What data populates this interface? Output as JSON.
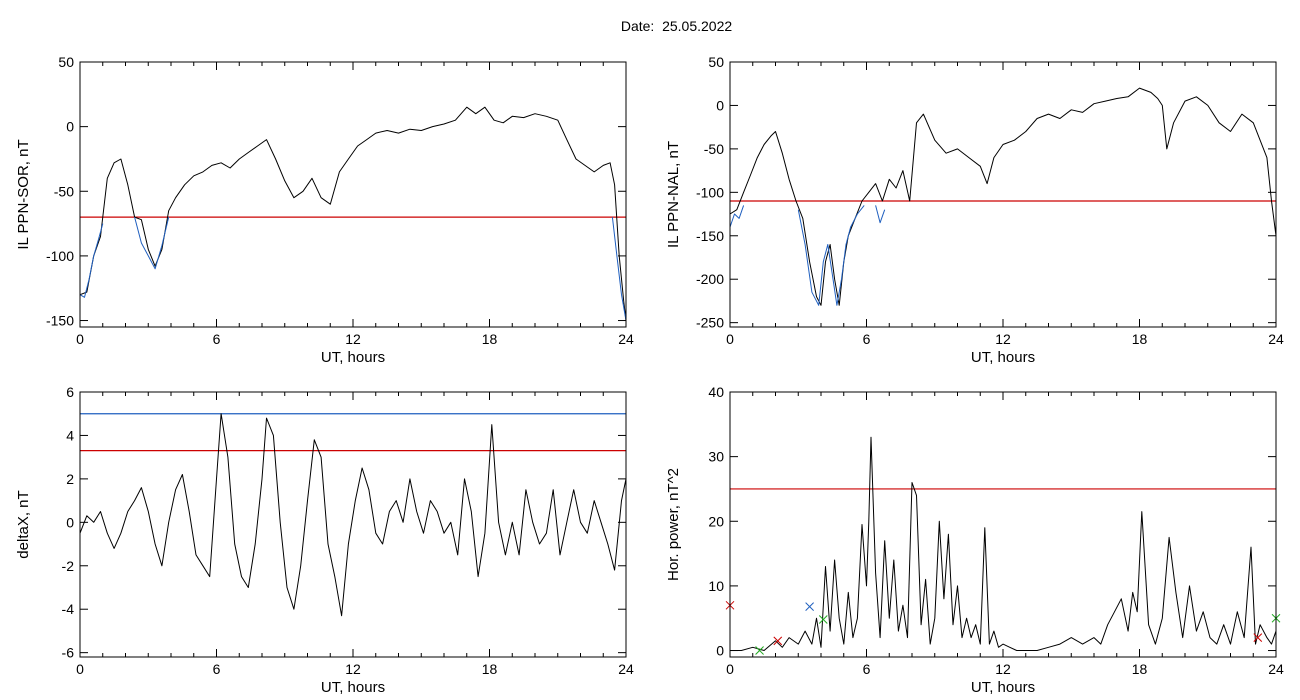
{
  "header": {
    "date_label": "Date:  25.05.2022"
  },
  "chart_data": [
    {
      "type": "line",
      "ylabel": "IL PPN-SOR, nT",
      "xlabel": "UT, hours",
      "xlim": [
        0,
        24
      ],
      "ylim": [
        -155,
        50
      ],
      "xticks": [
        0,
        6,
        12,
        18,
        24
      ],
      "yticks": [
        -150,
        -100,
        -50,
        0,
        50
      ],
      "series": [
        {
          "color": "#000000",
          "x": [
            0,
            0.3,
            0.6,
            0.9,
            1.2,
            1.5,
            1.8,
            2.1,
            2.4,
            2.7,
            3.0,
            3.3,
            3.6,
            3.9,
            4.2,
            4.6,
            5.0,
            5.4,
            5.8,
            6.2,
            6.6,
            7.0,
            7.4,
            7.8,
            8.2,
            8.6,
            9.0,
            9.4,
            9.8,
            10.2,
            10.6,
            11.0,
            11.4,
            11.8,
            12.2,
            12.6,
            13.0,
            13.5,
            14.0,
            14.5,
            15.0,
            15.5,
            16.0,
            16.5,
            17.0,
            17.4,
            17.8,
            18.2,
            18.6,
            19.0,
            19.5,
            20.0,
            20.5,
            21.0,
            21.4,
            21.8,
            22.2,
            22.6,
            23.0,
            23.3,
            23.5,
            23.7,
            23.9,
            24.0
          ],
          "y": [
            -130,
            -128,
            -100,
            -85,
            -40,
            -28,
            -25,
            -45,
            -70,
            -72,
            -95,
            -108,
            -95,
            -65,
            -55,
            -45,
            -38,
            -35,
            -30,
            -28,
            -32,
            -25,
            -20,
            -15,
            -10,
            -25,
            -42,
            -55,
            -50,
            -40,
            -55,
            -60,
            -35,
            -25,
            -15,
            -10,
            -5,
            -3,
            -5,
            -2,
            -3,
            0,
            2,
            5,
            15,
            10,
            15,
            5,
            3,
            8,
            7,
            10,
            8,
            5,
            -10,
            -25,
            -30,
            -35,
            -30,
            -28,
            -45,
            -100,
            -135,
            -150
          ]
        },
        {
          "color": "#1f5fbf",
          "x": [
            0,
            0.2,
            0.4,
            0.6,
            0.8,
            1.0
          ],
          "y": [
            -130,
            -132,
            -118,
            -100,
            -88,
            -75
          ]
        },
        {
          "color": "#1f5fbf",
          "x": [
            2.4,
            2.7,
            3.0,
            3.3,
            3.6,
            3.9
          ],
          "y": [
            -70,
            -90,
            -100,
            -110,
            -92,
            -70
          ]
        },
        {
          "color": "#1f5fbf",
          "x": [
            23.4,
            23.6,
            23.8,
            24.0
          ],
          "y": [
            -70,
            -100,
            -130,
            -150
          ]
        }
      ],
      "hlines": [
        {
          "y": -70,
          "color": "#cc0000"
        }
      ]
    },
    {
      "type": "line",
      "ylabel": "IL PPN-NAL, nT",
      "xlabel": "UT, hours",
      "xlim": [
        0,
        24
      ],
      "ylim": [
        -255,
        50
      ],
      "xticks": [
        0,
        6,
        12,
        18,
        24
      ],
      "yticks": [
        -250,
        -200,
        -150,
        -100,
        -50,
        0,
        50
      ],
      "series": [
        {
          "color": "#000000",
          "x": [
            0,
            0.3,
            0.6,
            0.9,
            1.2,
            1.5,
            1.8,
            2.0,
            2.3,
            2.6,
            2.9,
            3.2,
            3.5,
            3.8,
            4.0,
            4.2,
            4.4,
            4.6,
            4.8,
            5.0,
            5.2,
            5.5,
            5.8,
            6.1,
            6.4,
            6.7,
            7.0,
            7.3,
            7.6,
            7.9,
            8.2,
            8.5,
            9.0,
            9.5,
            10.0,
            10.5,
            11.0,
            11.3,
            11.6,
            12.0,
            12.5,
            13.0,
            13.5,
            14.0,
            14.5,
            15.0,
            15.5,
            16.0,
            16.5,
            17.0,
            17.5,
            18.0,
            18.5,
            18.8,
            19.0,
            19.2,
            19.5,
            20.0,
            20.5,
            21.0,
            21.5,
            22.0,
            22.5,
            23.0,
            23.3,
            23.6,
            23.8,
            24.0
          ],
          "y": [
            -125,
            -120,
            -100,
            -80,
            -60,
            -45,
            -35,
            -30,
            -55,
            -85,
            -110,
            -130,
            -180,
            -220,
            -230,
            -180,
            -160,
            -200,
            -230,
            -180,
            -150,
            -130,
            -110,
            -100,
            -90,
            -110,
            -85,
            -95,
            -75,
            -110,
            -20,
            -10,
            -40,
            -55,
            -50,
            -60,
            -70,
            -90,
            -60,
            -45,
            -40,
            -30,
            -15,
            -10,
            -15,
            -5,
            -8,
            2,
            5,
            8,
            10,
            20,
            15,
            8,
            0,
            -50,
            -20,
            5,
            10,
            0,
            -20,
            -30,
            -10,
            -20,
            -40,
            -60,
            -110,
            -150
          ]
        },
        {
          "color": "#1f5fbf",
          "x": [
            0,
            0.2,
            0.4,
            0.6
          ],
          "y": [
            -140,
            -125,
            -130,
            -115
          ]
        },
        {
          "color": "#1f5fbf",
          "x": [
            3.0,
            3.3,
            3.6,
            3.9,
            4.1,
            4.3,
            4.5,
            4.7,
            4.9,
            5.1,
            5.3,
            5.6,
            5.9
          ],
          "y": [
            -120,
            -160,
            -215,
            -230,
            -180,
            -160,
            -195,
            -230,
            -200,
            -160,
            -140,
            -125,
            -115
          ]
        },
        {
          "color": "#1f5fbf",
          "x": [
            6.4,
            6.6,
            6.8
          ],
          "y": [
            -115,
            -135,
            -120
          ]
        }
      ],
      "hlines": [
        {
          "y": -110,
          "color": "#cc0000"
        }
      ]
    },
    {
      "type": "line",
      "ylabel": "deltaX, nT",
      "xlabel": "UT, hours",
      "xlim": [
        0,
        24
      ],
      "ylim": [
        -6.2,
        6
      ],
      "xticks": [
        0,
        6,
        12,
        18,
        24
      ],
      "yticks": [
        -6,
        -4,
        -2,
        0,
        2,
        4,
        6
      ],
      "series": [
        {
          "color": "#000000",
          "x": [
            0,
            0.3,
            0.6,
            0.9,
            1.2,
            1.5,
            1.8,
            2.1,
            2.4,
            2.7,
            3.0,
            3.3,
            3.6,
            3.9,
            4.2,
            4.5,
            4.8,
            5.1,
            5.4,
            5.7,
            6.0,
            6.2,
            6.5,
            6.8,
            7.1,
            7.4,
            7.7,
            8.0,
            8.2,
            8.5,
            8.8,
            9.1,
            9.4,
            9.7,
            10.0,
            10.3,
            10.6,
            10.9,
            11.2,
            11.5,
            11.8,
            12.1,
            12.4,
            12.7,
            13.0,
            13.3,
            13.6,
            13.9,
            14.2,
            14.5,
            14.8,
            15.1,
            15.4,
            15.7,
            16.0,
            16.3,
            16.6,
            16.9,
            17.2,
            17.5,
            17.8,
            18.1,
            18.4,
            18.7,
            19.0,
            19.3,
            19.6,
            19.9,
            20.2,
            20.5,
            20.8,
            21.1,
            21.4,
            21.7,
            22.0,
            22.3,
            22.6,
            22.9,
            23.2,
            23.5,
            23.8,
            24.0
          ],
          "y": [
            -0.5,
            0.3,
            0,
            0.5,
            -0.5,
            -1.2,
            -0.5,
            0.5,
            1.0,
            1.6,
            0.5,
            -1.0,
            -2.0,
            0.0,
            1.5,
            2.2,
            0.5,
            -1.5,
            -2.0,
            -2.5,
            2.0,
            5.0,
            3.0,
            -1.0,
            -2.5,
            -3.0,
            -1.0,
            2.0,
            4.8,
            4.0,
            0.0,
            -3.0,
            -4.0,
            -2.0,
            1.0,
            3.8,
            3.0,
            -1.0,
            -2.5,
            -4.3,
            -1.0,
            1.0,
            2.5,
            1.5,
            -0.5,
            -1.0,
            0.5,
            1.0,
            0.0,
            2.0,
            0.5,
            -0.5,
            1.0,
            0.5,
            -0.5,
            0.0,
            -1.5,
            2.0,
            0.5,
            -2.5,
            -0.5,
            4.5,
            0.0,
            -1.5,
            0.0,
            -1.5,
            1.5,
            0.0,
            -1.0,
            -0.5,
            1.5,
            -1.5,
            0.0,
            1.5,
            0.0,
            -0.5,
            1.0,
            0.0,
            -1.0,
            -2.2,
            1.0,
            2.0
          ]
        }
      ],
      "hlines": [
        {
          "y": 5.0,
          "color": "#1f5fbf"
        },
        {
          "y": 3.3,
          "color": "#cc0000"
        }
      ]
    },
    {
      "type": "line",
      "ylabel": "Hor. power, nT^2",
      "xlabel": "UT, hours",
      "xlim": [
        0,
        24
      ],
      "ylim": [
        -1,
        40
      ],
      "xticks": [
        0,
        6,
        12,
        18,
        24
      ],
      "yticks": [
        0,
        10,
        20,
        30,
        40
      ],
      "series": [
        {
          "color": "#000000",
          "x": [
            0,
            0.5,
            1.0,
            1.5,
            2.0,
            2.3,
            2.6,
            3.0,
            3.3,
            3.6,
            3.8,
            4.0,
            4.2,
            4.4,
            4.6,
            4.8,
            5.0,
            5.2,
            5.4,
            5.6,
            5.8,
            6.0,
            6.1,
            6.2,
            6.4,
            6.6,
            6.8,
            7.0,
            7.2,
            7.4,
            7.6,
            7.8,
            8.0,
            8.2,
            8.4,
            8.6,
            8.8,
            9.0,
            9.2,
            9.4,
            9.6,
            9.8,
            10.0,
            10.2,
            10.4,
            10.6,
            10.8,
            11.0,
            11.2,
            11.4,
            11.6,
            11.8,
            12.0,
            12.3,
            12.6,
            13.0,
            13.5,
            14.0,
            14.5,
            15.0,
            15.5,
            16.0,
            16.3,
            16.6,
            16.9,
            17.2,
            17.5,
            17.7,
            17.9,
            18.1,
            18.4,
            18.7,
            19.0,
            19.3,
            19.6,
            19.9,
            20.2,
            20.5,
            20.8,
            21.1,
            21.4,
            21.7,
            22.0,
            22.3,
            22.6,
            22.9,
            23.1,
            23.3,
            23.6,
            23.8,
            24.0
          ],
          "y": [
            0,
            0,
            0.5,
            0,
            1.5,
            0.5,
            2.0,
            1.0,
            3.0,
            1.0,
            5.0,
            0.5,
            13.0,
            3.0,
            14.0,
            5.0,
            1.0,
            9.0,
            2.0,
            5.0,
            19.5,
            10.0,
            20.0,
            33.0,
            12.0,
            2.0,
            17.0,
            5.0,
            14.0,
            3.0,
            7.0,
            2.0,
            26.0,
            24.0,
            4.0,
            11.0,
            1.0,
            5.0,
            20.0,
            8.0,
            18.0,
            4.0,
            10.0,
            2.0,
            5.0,
            2.0,
            4.0,
            1.0,
            19.0,
            1.0,
            3.0,
            0.5,
            1.0,
            0.5,
            0,
            0,
            0,
            0.5,
            1.0,
            2.0,
            1.0,
            2.0,
            1.0,
            4.0,
            6.0,
            8.0,
            3.0,
            9.0,
            6.0,
            21.5,
            4.0,
            1.0,
            5.0,
            17.5,
            9.0,
            2.0,
            10.0,
            3.0,
            6.0,
            2.0,
            1.0,
            4.0,
            1.0,
            6.0,
            2.0,
            16.0,
            1.0,
            4.0,
            2.0,
            1.0,
            3.0
          ]
        }
      ],
      "hlines": [
        {
          "y": 25,
          "color": "#cc0000"
        }
      ],
      "markers": [
        {
          "x": 0.0,
          "y": 7.0,
          "color": "#cc0000"
        },
        {
          "x": 1.3,
          "y": 0.0,
          "color": "#22aa22"
        },
        {
          "x": 2.1,
          "y": 1.5,
          "color": "#cc0000"
        },
        {
          "x": 3.5,
          "y": 6.8,
          "color": "#1f5fbf"
        },
        {
          "x": 4.1,
          "y": 4.8,
          "color": "#22aa22"
        },
        {
          "x": 23.2,
          "y": 2.0,
          "color": "#cc0000"
        },
        {
          "x": 24.0,
          "y": 5.0,
          "color": "#22aa22"
        }
      ]
    }
  ]
}
